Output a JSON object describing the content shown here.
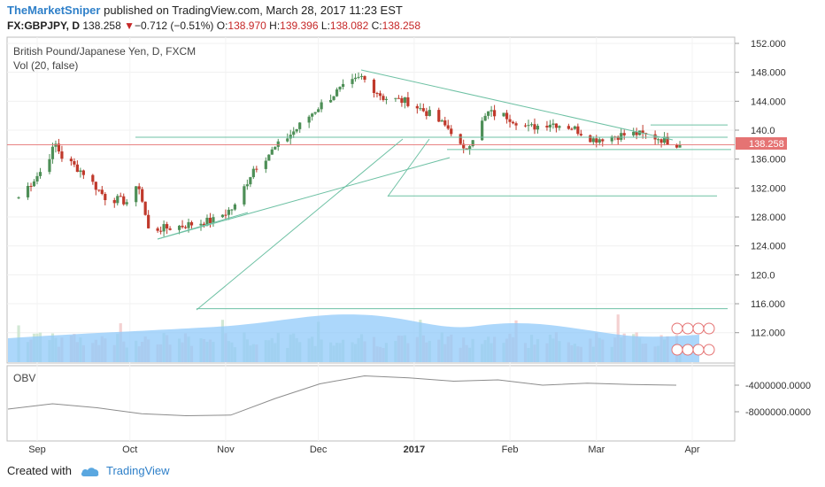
{
  "header": {
    "author": "TheMarketSniper",
    "published_text": "published on TradingView.com, March 28, 2017 11:23 EST",
    "symbol": "FX:GBPJPY, D",
    "price": "138.258",
    "change_arrow": "▼",
    "change": "−0.712 (−0.51%)",
    "open_label": "O:",
    "open": "138.970",
    "high_label": "H:",
    "high": "139.396",
    "low_label": "L:",
    "low": "138.082",
    "close_label": "C:",
    "close": "138.258"
  },
  "chart": {
    "title": "British Pound/Japanese Yen, D, FXCM",
    "volume_label": "Vol (20, false)",
    "last_price_label": "138.258",
    "obv_label": "OBV",
    "price_ticks": [
      "152.000",
      "148.000",
      "144.000",
      "140.0",
      "136.000",
      "132.000",
      "128.000",
      "124.000",
      "120.0",
      "116.000",
      "112.000"
    ],
    "obv_ticks": [
      "-4000000.0000",
      "-8000000.0000"
    ],
    "x_labels": [
      "Sep",
      "Oct",
      "Nov",
      "Dec",
      "2017",
      "Feb",
      "Mar",
      "Apr"
    ]
  },
  "footer": {
    "created_with": "Created with",
    "brand": "TradingView"
  },
  "colors": {
    "up": "#4e8f57",
    "down": "#c0392b",
    "trendline": "#6ec1a4",
    "volume_area": "#90caf9",
    "last_price": "#e57373"
  },
  "chart_data": {
    "type": "candlestick",
    "symbol": "GBPJPY",
    "timeframe": "D",
    "ylim": [
      108,
      153
    ],
    "price_series": [
      {
        "date": "2016-08-26",
        "close": 131.0
      },
      {
        "date": "2016-09-02",
        "close": 134.5
      },
      {
        "date": "2016-09-07",
        "close": 138.3
      },
      {
        "date": "2016-09-09",
        "close": 136.6
      },
      {
        "date": "2016-09-16",
        "close": 134.4
      },
      {
        "date": "2016-09-23",
        "close": 131.0
      },
      {
        "date": "2016-09-30",
        "close": 130.4
      },
      {
        "date": "2016-10-04",
        "close": 132.5
      },
      {
        "date": "2016-10-07",
        "close": 126.5
      },
      {
        "date": "2016-10-14",
        "close": 126.8
      },
      {
        "date": "2016-10-21",
        "close": 127.3
      },
      {
        "date": "2016-10-28",
        "close": 127.8
      },
      {
        "date": "2016-11-04",
        "close": 129.7
      },
      {
        "date": "2016-11-10",
        "close": 135.0
      },
      {
        "date": "2016-11-17",
        "close": 137.8
      },
      {
        "date": "2016-11-24",
        "close": 140.5
      },
      {
        "date": "2016-12-01",
        "close": 143.5
      },
      {
        "date": "2016-12-07",
        "close": 145.6
      },
      {
        "date": "2016-12-15",
        "close": 147.6
      },
      {
        "date": "2016-12-22",
        "close": 144.8
      },
      {
        "date": "2016-12-30",
        "close": 144.2
      },
      {
        "date": "2017-01-06",
        "close": 142.5
      },
      {
        "date": "2017-01-13",
        "close": 140.2
      },
      {
        "date": "2017-01-17",
        "close": 137.3
      },
      {
        "date": "2017-01-25",
        "close": 142.7
      },
      {
        "date": "2017-01-31",
        "close": 142.2
      },
      {
        "date": "2017-02-07",
        "close": 140.6
      },
      {
        "date": "2017-02-14",
        "close": 141.3
      },
      {
        "date": "2017-02-21",
        "close": 140.7
      },
      {
        "date": "2017-02-28",
        "close": 139.0
      },
      {
        "date": "2017-03-07",
        "close": 139.5
      },
      {
        "date": "2017-03-14",
        "close": 139.8
      },
      {
        "date": "2017-03-21",
        "close": 139.2
      },
      {
        "date": "2017-03-28",
        "close": 138.258
      }
    ],
    "horizontal_levels": [
      141.0,
      139.3,
      137.6,
      131.2,
      115.6
    ],
    "obv_series_sample": [
      -7600000,
      -6800000,
      -7400000,
      -8300000,
      -8600000,
      -8500000,
      -6000000,
      -3800000,
      -2600000,
      -2900000,
      -3400000,
      -3200000,
      -4000000,
      -3700000,
      -3900000,
      -4000000
    ]
  }
}
